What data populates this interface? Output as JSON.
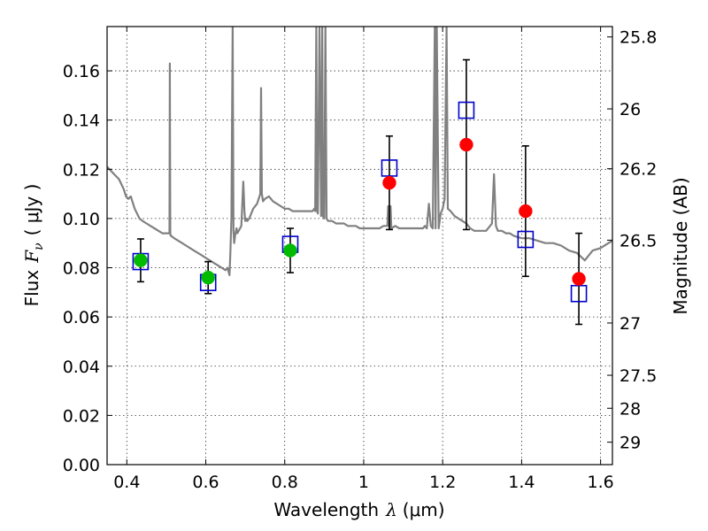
{
  "chart_data": {
    "type": "scatter",
    "xlabel": "Wavelength",
    "xlabel_symbol": "λ",
    "xlabel_unit": "(μm)",
    "ylabel": "Flux",
    "ylabel_symbol": "F",
    "ylabel_sub": "ν",
    "ylabel_unit": "( μJy )",
    "y2label": "Magnitude (AB)",
    "xlim": [
      0.35,
      1.63
    ],
    "ylim": [
      0,
      0.178
    ],
    "grid": true,
    "x_ticks": [
      {
        "value": 0.4,
        "label": "0.4"
      },
      {
        "value": 0.6,
        "label": "0.6"
      },
      {
        "value": 0.8,
        "label": "0.8"
      },
      {
        "value": 1.0,
        "label": "1"
      },
      {
        "value": 1.2,
        "label": "1.2"
      },
      {
        "value": 1.4,
        "label": "1.4"
      },
      {
        "value": 1.6,
        "label": "1.6"
      }
    ],
    "y_ticks": [
      {
        "value": 0.0,
        "label": "0.00"
      },
      {
        "value": 0.02,
        "label": "0.02"
      },
      {
        "value": 0.04,
        "label": "0.04"
      },
      {
        "value": 0.06,
        "label": "0.06"
      },
      {
        "value": 0.08,
        "label": "0.08"
      },
      {
        "value": 0.1,
        "label": "0.10"
      },
      {
        "value": 0.12,
        "label": "0.12"
      },
      {
        "value": 0.14,
        "label": "0.14"
      },
      {
        "value": 0.16,
        "label": "0.16"
      }
    ],
    "y2_ticks": [
      {
        "value": 25.8,
        "label": "25.8"
      },
      {
        "value": 26.0,
        "label": "26"
      },
      {
        "value": 26.2,
        "label": "26.2"
      },
      {
        "value": 26.5,
        "label": "26.5"
      },
      {
        "value": 27.0,
        "label": "27"
      },
      {
        "value": 27.5,
        "label": "27.5"
      },
      {
        "value": 28.0,
        "label": "28"
      },
      {
        "value": 29.0,
        "label": "29"
      }
    ],
    "colors": {
      "spectrum": "#808080",
      "optical_points": "#00bb00",
      "nir_points": "#ff0000",
      "model_squares": "#0000cc",
      "errorbar": "#000000"
    },
    "observed": [
      {
        "x": 0.435,
        "y": 0.083,
        "err": 0.0087,
        "band": "optical"
      },
      {
        "x": 0.606,
        "y": 0.076,
        "err": 0.0065,
        "band": "optical"
      },
      {
        "x": 0.814,
        "y": 0.087,
        "err": 0.009,
        "band": "optical"
      },
      {
        "x": 1.065,
        "y": 0.1145,
        "err": 0.019,
        "band": "nir"
      },
      {
        "x": 1.26,
        "y": 0.13,
        "err": 0.0345,
        "band": "nir"
      },
      {
        "x": 1.41,
        "y": 0.103,
        "err": 0.0265,
        "band": "nir"
      },
      {
        "x": 1.545,
        "y": 0.0755,
        "err": 0.0185,
        "band": "nir"
      }
    ],
    "model_photometry": [
      {
        "x": 0.435,
        "y": 0.0825
      },
      {
        "x": 0.606,
        "y": 0.074
      },
      {
        "x": 0.814,
        "y": 0.0895
      },
      {
        "x": 1.065,
        "y": 0.1205
      },
      {
        "x": 1.26,
        "y": 0.144
      },
      {
        "x": 1.41,
        "y": 0.0915
      },
      {
        "x": 1.545,
        "y": 0.0695
      }
    ],
    "spectrum": {
      "x": [
        0.35,
        0.356,
        0.362,
        0.368,
        0.374,
        0.38,
        0.386,
        0.392,
        0.398,
        0.404,
        0.41,
        0.416,
        0.42,
        0.426,
        0.432,
        0.44,
        0.45,
        0.46,
        0.47,
        0.48,
        0.49,
        0.5,
        0.508,
        0.509,
        0.51,
        0.511,
        0.512,
        0.52,
        0.53,
        0.54,
        0.55,
        0.56,
        0.57,
        0.58,
        0.59,
        0.6,
        0.61,
        0.62,
        0.63,
        0.64,
        0.65,
        0.655,
        0.66,
        0.662,
        0.665,
        0.668,
        0.67,
        0.672,
        0.675,
        0.678,
        0.68,
        0.69,
        0.695,
        0.698,
        0.7,
        0.702,
        0.705,
        0.71,
        0.72,
        0.73,
        0.738,
        0.74,
        0.742,
        0.745,
        0.75,
        0.76,
        0.77,
        0.78,
        0.79,
        0.8,
        0.81,
        0.82,
        0.83,
        0.84,
        0.85,
        0.86,
        0.87,
        0.875,
        0.877,
        0.88,
        0.882,
        0.884,
        0.888,
        0.892,
        0.895,
        0.897,
        0.9,
        0.903,
        0.906,
        0.91,
        0.92,
        0.93,
        0.94,
        0.95,
        0.96,
        0.97,
        0.98,
        0.99,
        1.0,
        1.01,
        1.02,
        1.03,
        1.04,
        1.05,
        1.055,
        1.06,
        1.062,
        1.065,
        1.068,
        1.07,
        1.08,
        1.09,
        1.1,
        1.11,
        1.12,
        1.14,
        1.15,
        1.155,
        1.16,
        1.165,
        1.17,
        1.175,
        1.18,
        1.182,
        1.185,
        1.19,
        1.195,
        1.2,
        1.205,
        1.21,
        1.213,
        1.22,
        1.23,
        1.24,
        1.25,
        1.26,
        1.27,
        1.28,
        1.29,
        1.3,
        1.31,
        1.32,
        1.325,
        1.33,
        1.335,
        1.34,
        1.35,
        1.36,
        1.37,
        1.38,
        1.4,
        1.42,
        1.44,
        1.46,
        1.48,
        1.5,
        1.52,
        1.54,
        1.56,
        1.58,
        1.6,
        1.62,
        1.63
      ],
      "y": [
        0.121,
        0.12,
        0.119,
        0.118,
        0.117,
        0.116,
        0.114,
        0.112,
        0.109,
        0.108,
        0.109,
        0.106,
        0.104,
        0.102,
        0.1,
        0.099,
        0.098,
        0.097,
        0.096,
        0.095,
        0.094,
        0.094,
        0.094,
        0.163,
        0.094,
        0.093,
        0.093,
        0.092,
        0.091,
        0.09,
        0.089,
        0.088,
        0.087,
        0.086,
        0.085,
        0.084,
        0.083,
        0.082,
        0.081,
        0.08,
        0.079,
        0.08,
        0.077,
        0.085,
        0.1,
        0.178,
        0.095,
        0.09,
        0.094,
        0.096,
        0.094,
        0.097,
        0.115,
        0.103,
        0.099,
        0.1,
        0.099,
        0.1,
        0.104,
        0.106,
        0.11,
        0.153,
        0.11,
        0.107,
        0.108,
        0.109,
        0.107,
        0.106,
        0.105,
        0.104,
        0.104,
        0.103,
        0.103,
        0.103,
        0.103,
        0.103,
        0.103,
        0.104,
        0.103,
        0.178,
        0.103,
        0.102,
        0.178,
        0.101,
        0.178,
        0.101,
        0.1,
        0.178,
        0.1,
        0.099,
        0.099,
        0.098,
        0.098,
        0.098,
        0.097,
        0.097,
        0.097,
        0.096,
        0.096,
        0.096,
        0.096,
        0.096,
        0.096,
        0.097,
        0.097,
        0.097,
        0.105,
        0.096,
        0.105,
        0.096,
        0.097,
        0.096,
        0.096,
        0.096,
        0.096,
        0.096,
        0.096,
        0.097,
        0.096,
        0.106,
        0.097,
        0.096,
        0.178,
        0.096,
        0.178,
        0.096,
        0.102,
        0.104,
        0.108,
        0.178,
        0.104,
        0.103,
        0.101,
        0.1,
        0.099,
        0.098,
        0.096,
        0.095,
        0.095,
        0.095,
        0.095,
        0.097,
        0.098,
        0.118,
        0.097,
        0.095,
        0.095,
        0.094,
        0.094,
        0.093,
        0.092,
        0.092,
        0.091,
        0.09,
        0.09,
        0.089,
        0.087,
        0.086,
        0.083,
        0.087,
        0.088,
        0.09,
        0.091
      ]
    },
    "spectrum_gaps": [
      1.213,
      1.22
    ]
  }
}
